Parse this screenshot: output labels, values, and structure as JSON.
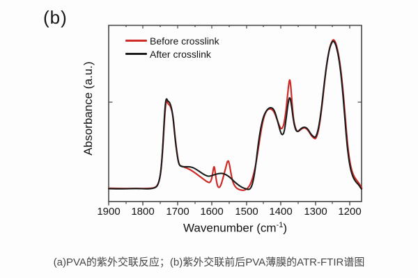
{
  "panel_label": "(b)",
  "chart": {
    "legend": [
      {
        "label": "Before crosslink",
        "color": "#ce2b26"
      },
      {
        "label": "After crosslink",
        "color": "#1b1b1b"
      }
    ],
    "y_axis_label": "Absorbance (a.u.)",
    "x_axis_label_prefix": "Wavenumber (cm",
    "x_axis_label_sup": "-1",
    "x_axis_label_suffix": ")",
    "x_ticks": [
      "1900",
      "1800",
      "1700",
      "1600",
      "1500",
      "1400",
      "1300",
      "1200"
    ]
  },
  "caption": "(a)PVA的紫外交联反应；(b)紫外交联前后PVA薄膜的ATR-FTIR谱图",
  "chart_data": {
    "type": "line",
    "title": "",
    "xlabel": "Wavenumber (cm-1)",
    "ylabel": "Absorbance (a.u.)",
    "x_axis_reversed": true,
    "x_range": [
      1900,
      1160
    ],
    "x_tick_values": [
      1900,
      1800,
      1700,
      1600,
      1500,
      1400,
      1300,
      1200
    ],
    "y_units": "a.u.",
    "grid": false,
    "legend_position": "top-left",
    "series": [
      {
        "name": "Before crosslink",
        "color": "#ce2b26",
        "points": [
          [
            1900,
            0.013
          ],
          [
            1860,
            0.011
          ],
          [
            1820,
            0.013
          ],
          [
            1790,
            0.011
          ],
          [
            1766,
            0.015
          ],
          [
            1756,
            0.036
          ],
          [
            1748,
            0.111
          ],
          [
            1742,
            0.281
          ],
          [
            1737,
            0.47
          ],
          [
            1733,
            0.557
          ],
          [
            1727,
            0.528
          ],
          [
            1721,
            0.519
          ],
          [
            1713,
            0.46
          ],
          [
            1707,
            0.323
          ],
          [
            1700,
            0.204
          ],
          [
            1695,
            0.153
          ],
          [
            1688,
            0.149
          ],
          [
            1678,
            0.14
          ],
          [
            1668,
            0.132
          ],
          [
            1657,
            0.119
          ],
          [
            1646,
            0.102
          ],
          [
            1635,
            0.085
          ],
          [
            1624,
            0.068
          ],
          [
            1613,
            0.051
          ],
          [
            1606,
            0.047
          ],
          [
            1601,
            0.068
          ],
          [
            1597,
            0.119
          ],
          [
            1594,
            0.153
          ],
          [
            1591,
            0.119
          ],
          [
            1587,
            0.055
          ],
          [
            1583,
            0.021
          ],
          [
            1578,
            0.017
          ],
          [
            1573,
            0.038
          ],
          [
            1567,
            0.083
          ],
          [
            1560,
            0.14
          ],
          [
            1554,
            0.187
          ],
          [
            1550,
            0.17
          ],
          [
            1545,
            0.106
          ],
          [
            1540,
            0.055
          ],
          [
            1534,
            0.026
          ],
          [
            1526,
            0.009
          ],
          [
            1516,
            0.002
          ],
          [
            1506,
            0.0
          ],
          [
            1496,
            0.013
          ],
          [
            1488,
            0.04
          ],
          [
            1480,
            0.089
          ],
          [
            1472,
            0.166
          ],
          [
            1464,
            0.277
          ],
          [
            1456,
            0.387
          ],
          [
            1448,
            0.46
          ],
          [
            1440,
            0.494
          ],
          [
            1430,
            0.502
          ],
          [
            1420,
            0.485
          ],
          [
            1411,
            0.434
          ],
          [
            1403,
            0.387
          ],
          [
            1397,
            0.374
          ],
          [
            1391,
            0.404
          ],
          [
            1386,
            0.472
          ],
          [
            1381,
            0.57
          ],
          [
            1377,
            0.655
          ],
          [
            1374,
            0.685
          ],
          [
            1371,
            0.638
          ],
          [
            1367,
            0.515
          ],
          [
            1363,
            0.43
          ],
          [
            1358,
            0.383
          ],
          [
            1352,
            0.357
          ],
          [
            1344,
            0.37
          ],
          [
            1336,
            0.383
          ],
          [
            1328,
            0.383
          ],
          [
            1320,
            0.366
          ],
          [
            1312,
            0.336
          ],
          [
            1304,
            0.319
          ],
          [
            1298,
            0.315
          ],
          [
            1290,
            0.37
          ],
          [
            1282,
            0.489
          ],
          [
            1274,
            0.647
          ],
          [
            1266,
            0.787
          ],
          [
            1258,
            0.881
          ],
          [
            1250,
            0.921
          ],
          [
            1245,
            0.923
          ],
          [
            1238,
            0.889
          ],
          [
            1229,
            0.791
          ],
          [
            1221,
            0.647
          ],
          [
            1215,
            0.502
          ],
          [
            1209,
            0.34
          ],
          [
            1203,
            0.221
          ],
          [
            1197,
            0.145
          ],
          [
            1191,
            0.102
          ],
          [
            1185,
            0.077
          ],
          [
            1179,
            0.06
          ],
          [
            1173,
            0.043
          ],
          [
            1168,
            0.026
          ],
          [
            1165,
            0.013
          ]
        ]
      },
      {
        "name": "After crosslink",
        "color": "#1b1b1b",
        "points": [
          [
            1900,
            0.011
          ],
          [
            1860,
            0.009
          ],
          [
            1820,
            0.012
          ],
          [
            1790,
            0.009
          ],
          [
            1766,
            0.013
          ],
          [
            1756,
            0.034
          ],
          [
            1748,
            0.115
          ],
          [
            1742,
            0.294
          ],
          [
            1737,
            0.5
          ],
          [
            1733,
            0.57
          ],
          [
            1728,
            0.545
          ],
          [
            1722,
            0.54
          ],
          [
            1714,
            0.472
          ],
          [
            1708,
            0.332
          ],
          [
            1701,
            0.213
          ],
          [
            1696,
            0.157
          ],
          [
            1688,
            0.145
          ],
          [
            1676,
            0.145
          ],
          [
            1665,
            0.145
          ],
          [
            1655,
            0.14
          ],
          [
            1645,
            0.128
          ],
          [
            1633,
            0.111
          ],
          [
            1621,
            0.094
          ],
          [
            1609,
            0.085
          ],
          [
            1597,
            0.094
          ],
          [
            1584,
            0.102
          ],
          [
            1572,
            0.106
          ],
          [
            1560,
            0.098
          ],
          [
            1548,
            0.081
          ],
          [
            1536,
            0.055
          ],
          [
            1524,
            0.034
          ],
          [
            1512,
            0.017
          ],
          [
            1501,
            0.009
          ],
          [
            1491,
            0.004
          ],
          [
            1483,
            0.03
          ],
          [
            1475,
            0.119
          ],
          [
            1467,
            0.264
          ],
          [
            1459,
            0.379
          ],
          [
            1451,
            0.451
          ],
          [
            1441,
            0.494
          ],
          [
            1429,
            0.511
          ],
          [
            1419,
            0.494
          ],
          [
            1410,
            0.43
          ],
          [
            1402,
            0.362
          ],
          [
            1396,
            0.336
          ],
          [
            1390,
            0.357
          ],
          [
            1384,
            0.451
          ],
          [
            1378,
            0.549
          ],
          [
            1374,
            0.574
          ],
          [
            1370,
            0.536
          ],
          [
            1364,
            0.434
          ],
          [
            1358,
            0.374
          ],
          [
            1352,
            0.357
          ],
          [
            1344,
            0.374
          ],
          [
            1336,
            0.387
          ],
          [
            1328,
            0.387
          ],
          [
            1321,
            0.374
          ],
          [
            1313,
            0.345
          ],
          [
            1305,
            0.328
          ],
          [
            1299,
            0.323
          ],
          [
            1291,
            0.374
          ],
          [
            1283,
            0.485
          ],
          [
            1275,
            0.638
          ],
          [
            1267,
            0.774
          ],
          [
            1259,
            0.868
          ],
          [
            1251,
            0.911
          ],
          [
            1246,
            0.915
          ],
          [
            1239,
            0.885
          ],
          [
            1230,
            0.791
          ],
          [
            1222,
            0.643
          ],
          [
            1216,
            0.494
          ],
          [
            1210,
            0.328
          ],
          [
            1204,
            0.209
          ],
          [
            1198,
            0.132
          ],
          [
            1192,
            0.089
          ],
          [
            1186,
            0.064
          ],
          [
            1180,
            0.047
          ],
          [
            1174,
            0.034
          ],
          [
            1170,
            0.021
          ],
          [
            1166,
            0.009
          ]
        ]
      }
    ]
  }
}
